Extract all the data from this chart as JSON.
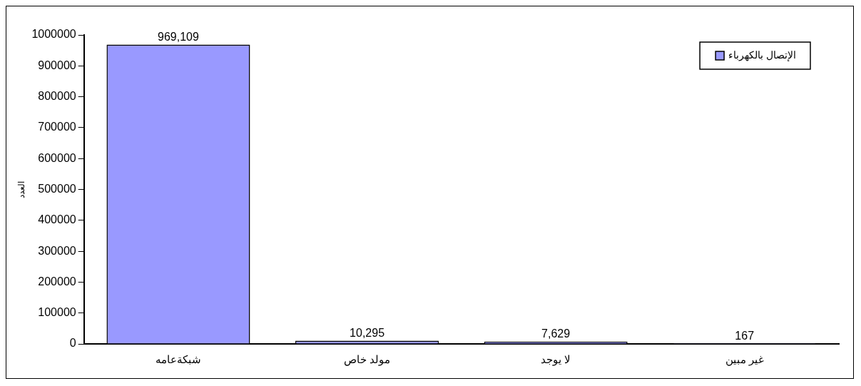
{
  "chart_data": {
    "type": "bar",
    "ylabel": "العدد",
    "categories": [
      "شبكةعامه",
      "مولد خاص",
      "لا يوجد",
      "غير مبين"
    ],
    "series": [
      {
        "name": "الإتصال بالكهرباء",
        "color": "#9999ff",
        "values": [
          969109,
          10295,
          7629,
          167
        ],
        "value_labels": [
          "969,109",
          "10,295",
          "7,629",
          "167"
        ]
      }
    ],
    "ylim": [
      0,
      1000000
    ],
    "yticks": [
      0,
      100000,
      200000,
      300000,
      400000,
      500000,
      600000,
      700000,
      800000,
      900000,
      1000000
    ],
    "grid": false,
    "legend": "top right"
  }
}
